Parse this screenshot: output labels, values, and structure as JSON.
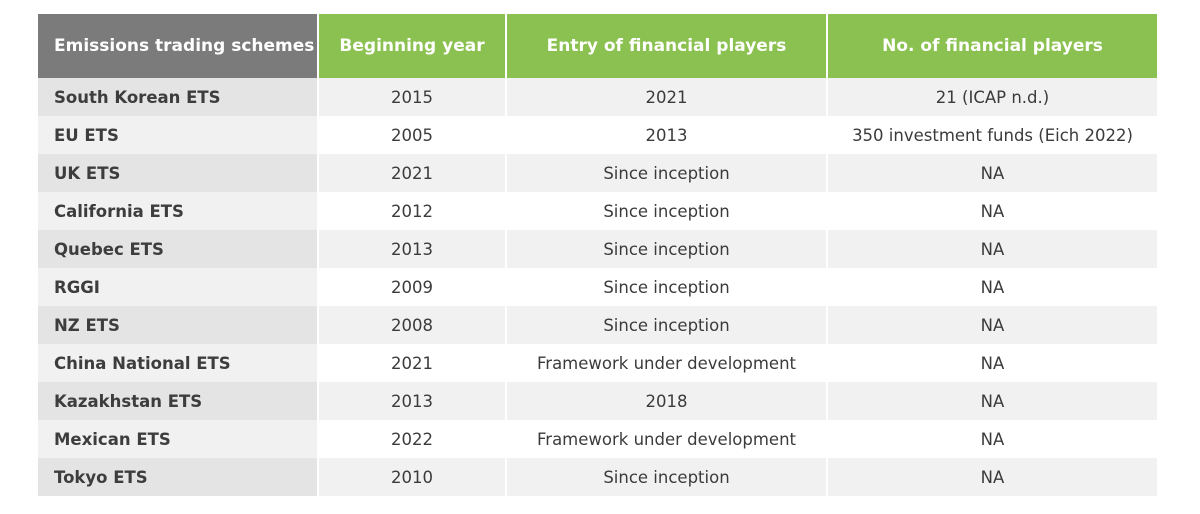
{
  "table": {
    "headers": [
      "Emissions trading schemes",
      "Beginning year",
      "Entry of financial players",
      "No. of financial players"
    ],
    "rows": [
      [
        "South Korean ETS",
        "2015",
        "2021",
        "21 (ICAP n.d.)"
      ],
      [
        "EU ETS",
        "2005",
        "2013",
        "350 investment funds (Eich 2022)"
      ],
      [
        "UK ETS",
        "2021",
        "Since inception",
        "NA"
      ],
      [
        "California ETS",
        "2012",
        "Since inception",
        "NA"
      ],
      [
        "Quebec ETS",
        "2013",
        "Since inception",
        "NA"
      ],
      [
        "RGGI",
        "2009",
        "Since inception",
        "NA"
      ],
      [
        "NZ ETS",
        "2008",
        "Since inception",
        "NA"
      ],
      [
        "China National ETS",
        "2021",
        "Framework under development",
        "NA"
      ],
      [
        "Kazakhstan ETS",
        "2013",
        "2018",
        "NA"
      ],
      [
        "Mexican ETS",
        "2022",
        "Framework under development",
        "NA"
      ],
      [
        "Tokyo ETS",
        "2010",
        "Since inception",
        "NA"
      ]
    ]
  },
  "colors": {
    "header_first": "#7b7b7b",
    "header_accent": "#8bc150",
    "row_shade": "#f1f1f1",
    "name_shade": "#e4e4e4"
  }
}
